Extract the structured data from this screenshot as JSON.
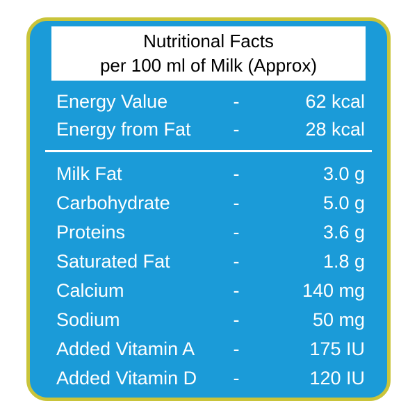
{
  "header": {
    "line1": "Nutritional Facts",
    "line2": "per 100 ml of Milk (Approx)"
  },
  "energy_rows": [
    {
      "name": "Energy Value",
      "dash": "-",
      "value": "62 kcal"
    },
    {
      "name": "Energy from Fat",
      "dash": "-",
      "value": "28 kcal"
    }
  ],
  "nutrient_rows": [
    {
      "name": "Milk Fat",
      "dash": "-",
      "value": "3.0 g"
    },
    {
      "name": "Carbohydrate",
      "dash": "-",
      "value": "5.0 g"
    },
    {
      "name": "Proteins",
      "dash": "-",
      "value": "3.6 g"
    },
    {
      "name": "Saturated Fat",
      "dash": "-",
      "value": "1.8 g"
    },
    {
      "name": "Calcium",
      "dash": "-",
      "value": "140 mg"
    },
    {
      "name": "Sodium",
      "dash": "-",
      "value": "50 mg"
    },
    {
      "name": "Added Vitamin A",
      "dash": "-",
      "value": "175 IU"
    },
    {
      "name": "Added Vitamin D",
      "dash": "-",
      "value": "120 IU"
    }
  ],
  "colors": {
    "card_background": "#1b9bd8",
    "card_border": "#c9c43a",
    "header_background": "#ffffff",
    "header_text": "#000000",
    "row_text": "#ffffff",
    "separator": "#ffffff"
  }
}
